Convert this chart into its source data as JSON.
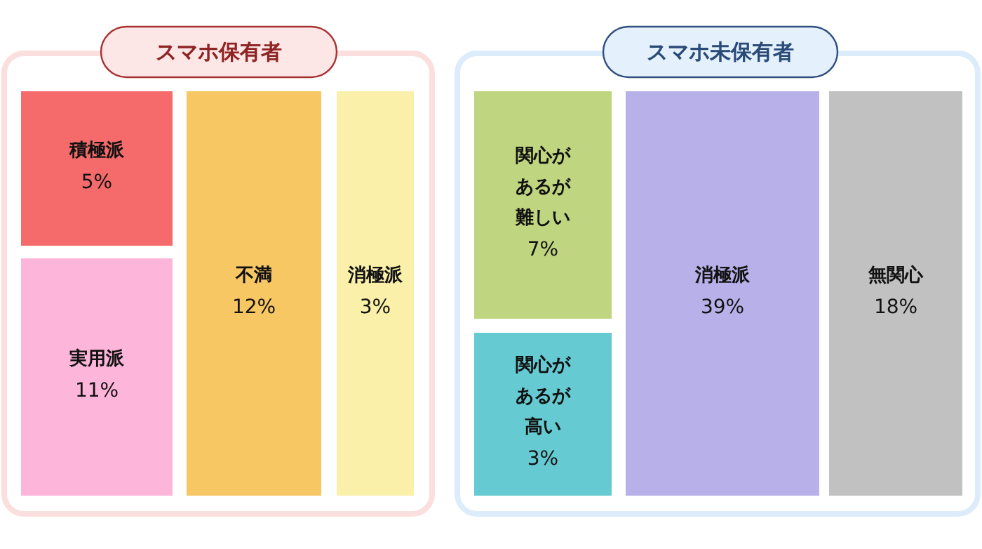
{
  "chart_data": [
    {
      "type": "other",
      "title": "スマホ保有者",
      "categories": [
        "積極派",
        "実用派",
        "不満",
        "消極派"
      ],
      "values": [
        5,
        11,
        12,
        3
      ],
      "value_labels": [
        "5%",
        "11%",
        "12%",
        "3%"
      ],
      "colors": [
        "#f56b6b",
        "#fdb6da",
        "#f6c763",
        "#faf0a9"
      ]
    },
    {
      "type": "other",
      "title": "スマホ未保有者",
      "categories": [
        "関心があるが難しい",
        "関心があるが高い",
        "消極派",
        "無関心"
      ],
      "values": [
        7,
        3,
        39,
        18
      ],
      "value_labels": [
        "7%",
        "3%",
        "39%",
        "18%"
      ],
      "colors": [
        "#c0d57f",
        "#66cad2",
        "#b8b0e8",
        "#c1c1c1"
      ]
    }
  ]
}
